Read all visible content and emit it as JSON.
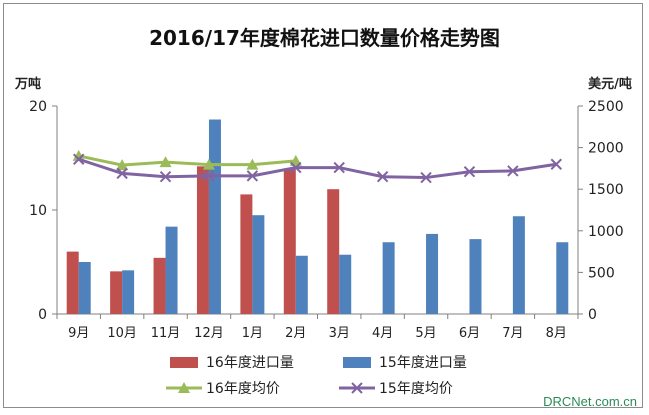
{
  "chart_data": {
    "type": "bar",
    "title": "2016/17年度棉花进口数量价格走势图",
    "y_left_label": "万吨",
    "y_right_label": "美元/吨",
    "y_left_lim": [
      0,
      20
    ],
    "y_left_ticks": [
      "0",
      "10",
      "20"
    ],
    "y_right_lim": [
      0,
      2500
    ],
    "y_right_ticks": [
      "0",
      "500",
      "1000",
      "1500",
      "2000",
      "2500"
    ],
    "categories": [
      "9月",
      "10月",
      "11月",
      "12月",
      "1月",
      "2月",
      "3月",
      "4月",
      "5月",
      "6月",
      "7月",
      "8月"
    ],
    "series": [
      {
        "name": "16年度进口量",
        "kind": "bar",
        "axis": "left",
        "color": "#c0504d",
        "values": [
          6.0,
          4.1,
          5.4,
          14.2,
          11.5,
          14.0,
          12.0,
          null,
          null,
          null,
          null,
          null
        ]
      },
      {
        "name": "15年度进口量",
        "kind": "bar",
        "axis": "left",
        "color": "#4f81bd",
        "values": [
          5.0,
          4.2,
          8.4,
          18.7,
          9.5,
          5.6,
          5.7,
          6.9,
          7.7,
          7.2,
          9.4,
          6.9
        ]
      },
      {
        "name": "16年度均价",
        "kind": "line",
        "axis": "right",
        "color": "#9bbb59",
        "marker": "triangle",
        "values": [
          1900,
          1790,
          1825,
          1795,
          1795,
          1840,
          null,
          null,
          null,
          null,
          null,
          null
        ]
      },
      {
        "name": "15年度均价",
        "kind": "line",
        "axis": "right",
        "color": "#8064a2",
        "marker": "x",
        "values": [
          1860,
          1690,
          1650,
          1660,
          1660,
          1760,
          1760,
          1650,
          1640,
          1710,
          1720,
          1800
        ]
      }
    ],
    "legend_position": "bottom",
    "grid": false
  },
  "watermark": "DRCNet.com.cn"
}
